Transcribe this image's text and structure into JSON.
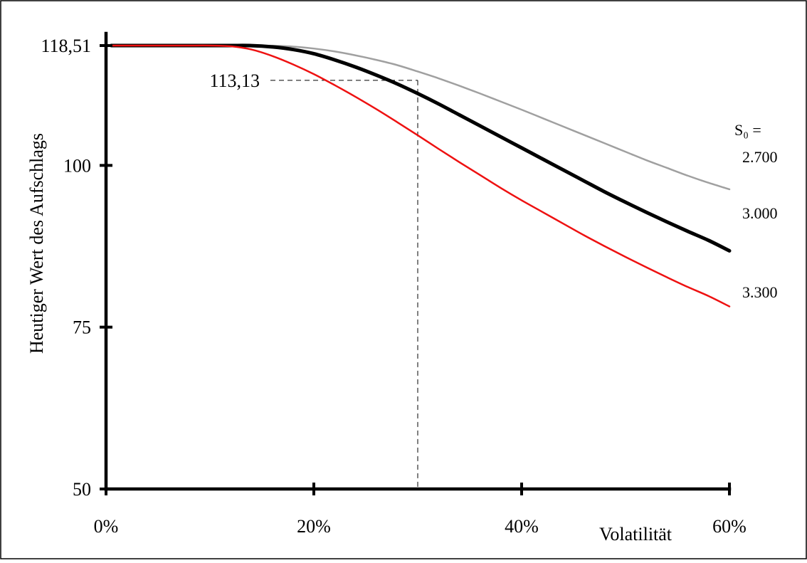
{
  "chart_data": {
    "type": "line",
    "xlabel": "Volatilität",
    "ylabel": "Heutiger Wert des Aufschlags",
    "xlim": [
      0,
      60
    ],
    "ylim": [
      50,
      118.51
    ],
    "x_ticks": [
      {
        "value": 0,
        "label": "0%"
      },
      {
        "value": 20,
        "label": "20%"
      },
      {
        "value": 40,
        "label": "40%"
      },
      {
        "value": 60,
        "label": "60%"
      }
    ],
    "y_ticks": [
      {
        "value": 50,
        "label": "50"
      },
      {
        "value": 75,
        "label": "75"
      },
      {
        "value": 100,
        "label": "100"
      },
      {
        "value": 118.51,
        "label": "118,51"
      }
    ],
    "x": [
      0.5,
      2,
      4,
      6,
      8,
      10,
      12,
      14,
      16,
      18,
      20,
      22,
      24,
      26,
      28,
      30,
      32,
      34,
      36,
      38,
      40,
      42,
      44,
      46,
      48,
      50,
      52,
      54,
      56,
      58,
      60
    ],
    "series": [
      {
        "name": "2.700",
        "color": "#a0a0a0",
        "width": 2.5,
        "values": [
          118.51,
          118.51,
          118.51,
          118.51,
          118.51,
          118.51,
          118.51,
          118.51,
          118.48,
          118.35,
          118.05,
          117.6,
          117.0,
          116.3,
          115.5,
          114.5,
          113.45,
          112.3,
          111.1,
          109.85,
          108.6,
          107.3,
          106.0,
          104.7,
          103.4,
          102.1,
          100.8,
          99.6,
          98.4,
          97.3,
          96.3
        ]
      },
      {
        "name": "3.000",
        "color": "#000000",
        "width": 5,
        "values": [
          118.51,
          118.51,
          118.51,
          118.51,
          118.51,
          118.51,
          118.51,
          118.5,
          118.3,
          117.9,
          117.25,
          116.3,
          115.2,
          113.95,
          112.6,
          111.1,
          109.5,
          107.8,
          106.1,
          104.4,
          102.7,
          101.0,
          99.3,
          97.6,
          95.9,
          94.3,
          92.75,
          91.25,
          89.8,
          88.4,
          86.8
        ]
      },
      {
        "name": "3.300",
        "color": "#ee1111",
        "width": 2.5,
        "values": [
          118.51,
          118.51,
          118.51,
          118.51,
          118.51,
          118.51,
          118.4,
          117.9,
          116.9,
          115.6,
          114.1,
          112.4,
          110.6,
          108.7,
          106.7,
          104.65,
          102.55,
          100.5,
          98.5,
          96.5,
          94.6,
          92.8,
          91.0,
          89.2,
          87.5,
          85.85,
          84.25,
          82.7,
          81.2,
          79.8,
          78.2
        ]
      }
    ],
    "annotations": [
      {
        "label": "113,13",
        "x": 30,
        "y": 113.13
      }
    ],
    "legend_title": "S₀ =",
    "legend_placement": "right"
  }
}
